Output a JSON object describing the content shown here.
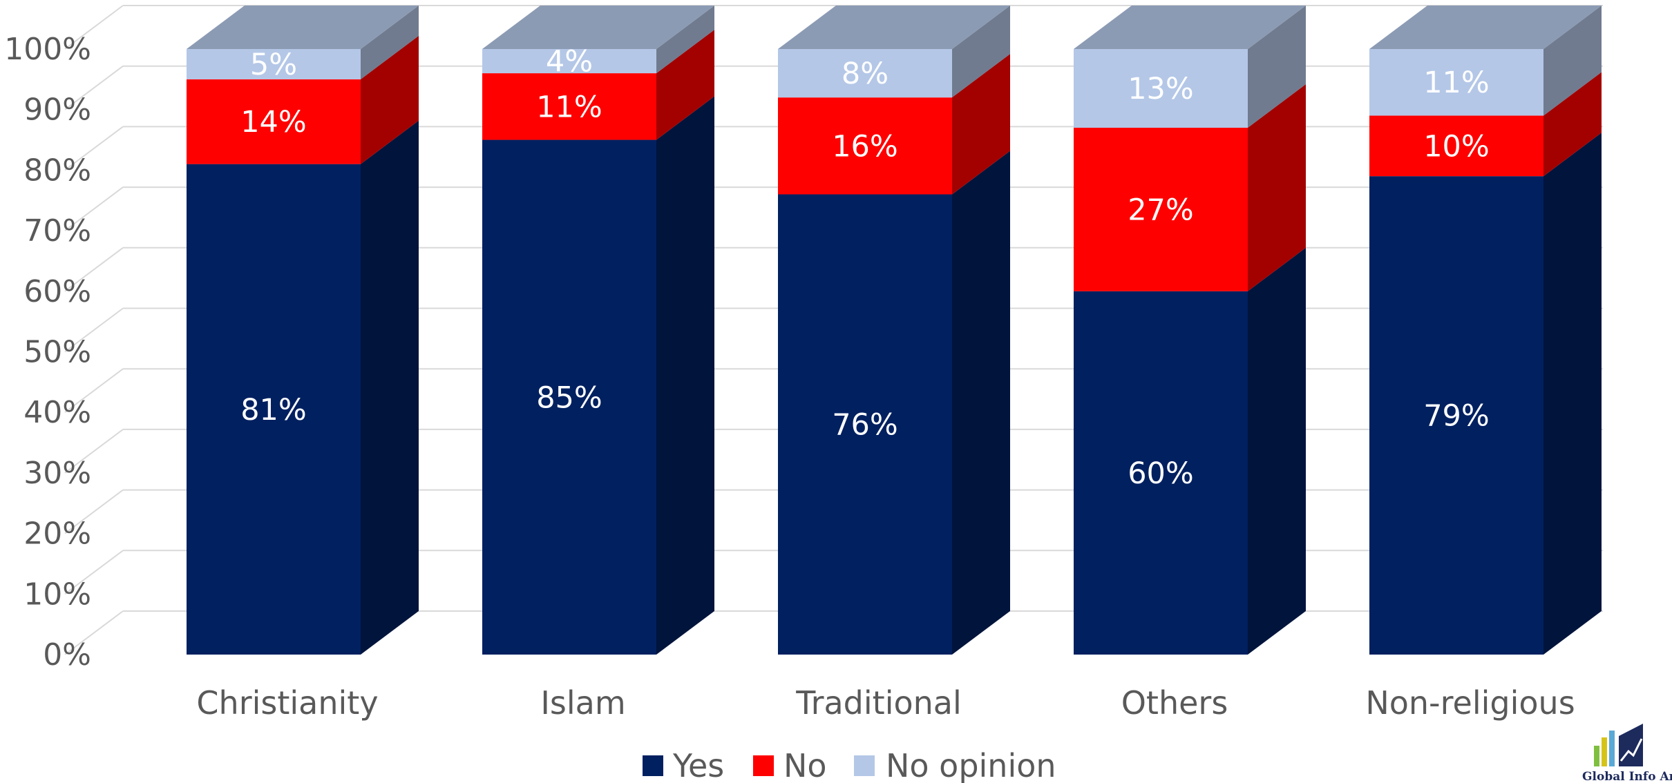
{
  "chart_data": {
    "type": "bar",
    "stacked": true,
    "three_d": true,
    "categories": [
      "Christianity",
      "Islam",
      "Traditional",
      "Others",
      "Non-religious"
    ],
    "series": [
      {
        "name": "Yes",
        "values": [
          81,
          85,
          76,
          60,
          79
        ],
        "labels": [
          "81%",
          "85%",
          "76%",
          "60%",
          "79%"
        ],
        "color": "#002060"
      },
      {
        "name": "No",
        "values": [
          14,
          11,
          16,
          27,
          10
        ],
        "labels": [
          "14%",
          "11%",
          "16%",
          "27%",
          "10%"
        ],
        "color": "#ff0000"
      },
      {
        "name": "No opinion",
        "values": [
          5,
          4,
          8,
          13,
          11
        ],
        "labels": [
          "5%",
          "4%",
          "8%",
          "13%",
          "11%"
        ],
        "color": "#b4c7e7"
      }
    ],
    "y_ticks": [
      "0%",
      "10%",
      "20%",
      "30%",
      "40%",
      "50%",
      "60%",
      "70%",
      "80%",
      "90%",
      "100%"
    ],
    "ylim": [
      0,
      100
    ],
    "grid": true,
    "legend_position": "bottom"
  },
  "logo": {
    "text": "Global Info Analytics"
  }
}
